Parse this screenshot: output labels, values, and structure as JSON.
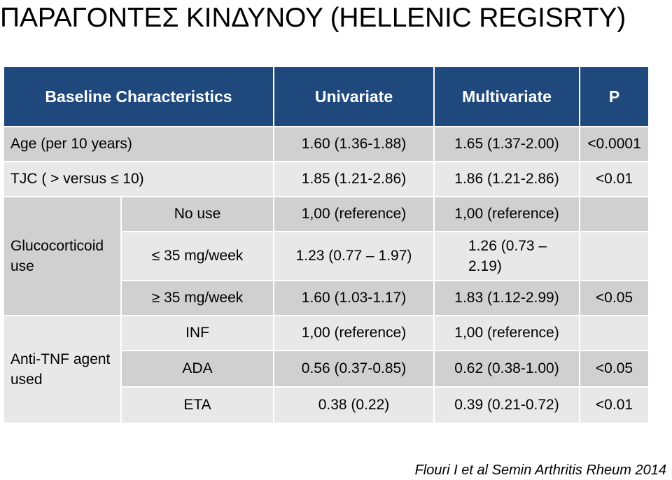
{
  "title": "ΠΑΡΑΓΟΝΤΕΣ ΚΙΝΔΥΝΟΥ (HELLENIC REGISRTY)",
  "table": {
    "headers": {
      "baseline": "Baseline Characteristics",
      "univariate": "Univariate",
      "multivariate": "Multivariate",
      "p": "P"
    },
    "age": {
      "label": "Age (per 10 years)",
      "univariate": "1.60 (1.36-1.88)",
      "multivariate": "1.65 (1.37-2.00)",
      "p": "<0.0001"
    },
    "tjc": {
      "label": "TJC ( >  versus ≤ 10)",
      "univariate": "1.85 (1.21-2.86)",
      "multivariate": "1.86 (1.21-2.86)",
      "p": "<0.01"
    },
    "glucocorticoid": {
      "label": "Glucocorticoid use",
      "rows": [
        {
          "sub": "No use",
          "univariate": "1,00 (reference)",
          "multivariate": "1,00 (reference)",
          "p": ""
        },
        {
          "sub": "≤ 35 mg/week",
          "univariate": "1.23 (0.77 – 1.97)",
          "multivariate": "1.26 (0.73 – 2.19)",
          "p": ""
        },
        {
          "sub": "≥ 35 mg/week",
          "univariate": "1.60 (1.03-1.17)",
          "multivariate": "1.83 (1.12-2.99)",
          "p": "<0.05"
        }
      ]
    },
    "antitnf": {
      "label": "Anti-TNF agent used",
      "rows": [
        {
          "sub": "INF",
          "univariate": "1,00 (reference)",
          "multivariate": "1,00 (reference)",
          "p": ""
        },
        {
          "sub": "ADA",
          "univariate": "0.56 (0.37-0.85)",
          "multivariate": "0.62 (0.38-1.00)",
          "p": "<0.05"
        },
        {
          "sub": "ETA",
          "univariate": "0.38 (0.22)",
          "multivariate": "0.39 (0.21-0.72)",
          "p": "<0.01"
        }
      ]
    }
  },
  "citation": "Flouri I et al Semin Arthritis Rheum 2014",
  "colors": {
    "header_bg": "#1f497d",
    "header_text": "#ffffff",
    "row_dark": "#d0d0d0",
    "row_light": "#e8e8e8"
  }
}
